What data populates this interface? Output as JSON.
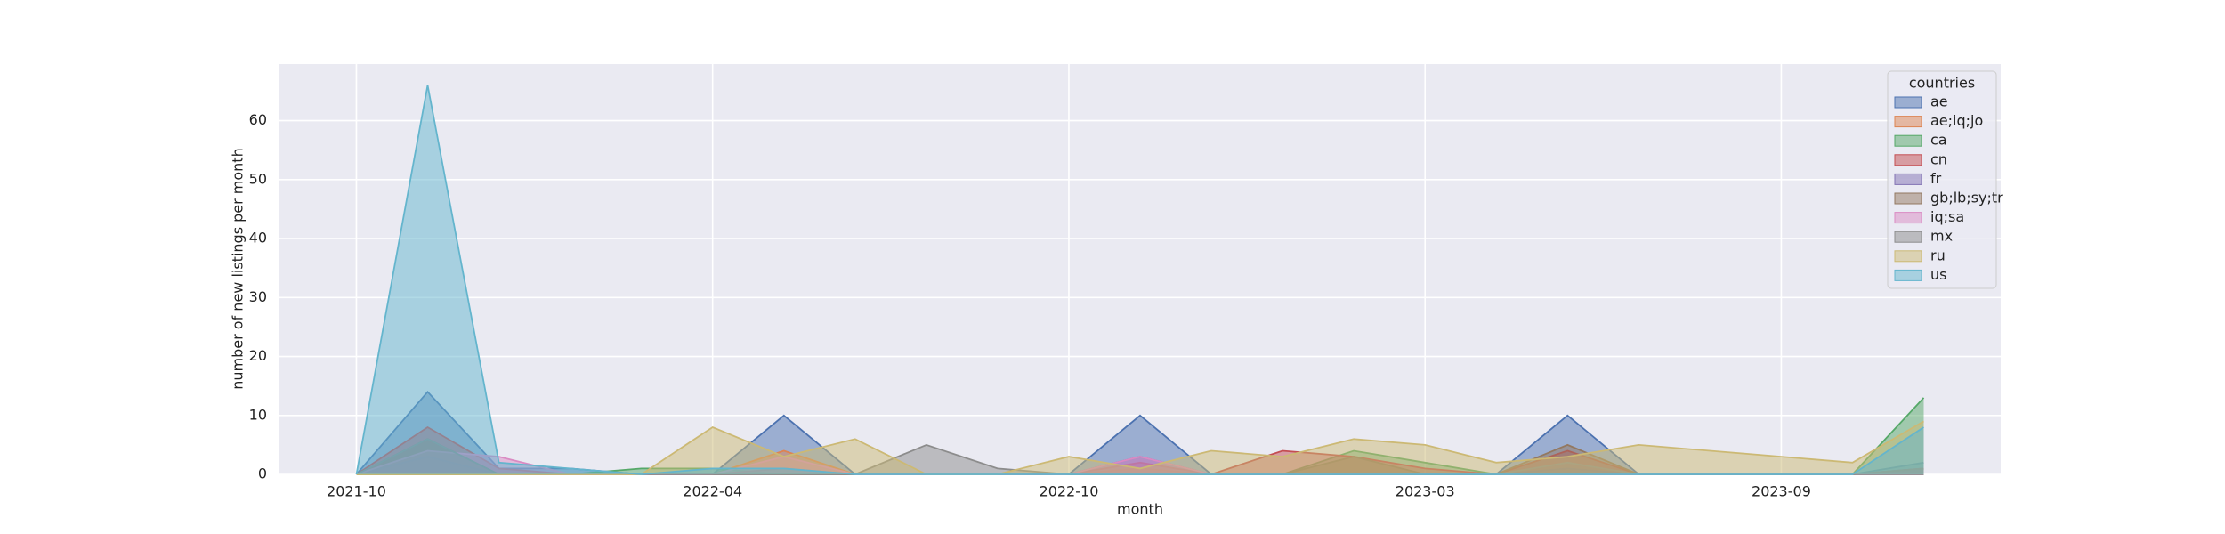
{
  "chart_data": {
    "type": "area",
    "xlabel": "month",
    "ylabel": "number of new listings per month",
    "categories": [
      "2021-10",
      null,
      null,
      null,
      null,
      "2022-04",
      null,
      null,
      null,
      null,
      "2022-10",
      null,
      null,
      null,
      null,
      "2023-03",
      null,
      null,
      null,
      null,
      "2023-09",
      null,
      null
    ],
    "ylim": [
      0,
      69.6
    ],
    "yticks": [
      0,
      10,
      20,
      30,
      40,
      50,
      60
    ],
    "grid": true,
    "legend_title": "countries",
    "legend_position": "upper right",
    "series": [
      {
        "name": "ae",
        "color": "#4c72b0",
        "values": [
          0,
          14,
          1,
          1,
          0,
          0,
          10,
          0,
          0,
          0,
          0,
          10,
          0,
          0,
          0,
          0,
          0,
          10,
          0,
          0,
          0,
          0,
          2
        ]
      },
      {
        "name": "ae;iq;jo",
        "color": "#dd8452",
        "values": [
          0,
          0,
          0,
          0,
          0,
          0,
          4,
          0,
          0,
          0,
          0,
          1,
          0,
          0,
          0,
          0,
          0,
          0,
          0,
          0,
          0,
          0,
          1
        ]
      },
      {
        "name": "ca",
        "color": "#55a868",
        "values": [
          0,
          0,
          0,
          0,
          1,
          1,
          0,
          0,
          0,
          0,
          0,
          0,
          0,
          0,
          4,
          2,
          0,
          0,
          0,
          0,
          0,
          0,
          13
        ]
      },
      {
        "name": "cn",
        "color": "#c44e52",
        "values": [
          0,
          8,
          1,
          0,
          0,
          0,
          1,
          0,
          0,
          0,
          0,
          2,
          0,
          4,
          3,
          1,
          0,
          4,
          0,
          0,
          0,
          0,
          1
        ]
      },
      {
        "name": "fr",
        "color": "#8172b3",
        "values": [
          0,
          3,
          0,
          0,
          0,
          0,
          0,
          0,
          0,
          0,
          0,
          3,
          0,
          0,
          0,
          0,
          0,
          1,
          0,
          0,
          0,
          0,
          1
        ]
      },
      {
        "name": "gb;lb;sy;tr",
        "color": "#937860",
        "values": [
          0,
          6,
          0,
          0,
          0,
          0,
          0,
          0,
          0,
          0,
          0,
          0,
          0,
          0,
          3,
          0,
          0,
          5,
          0,
          0,
          0,
          0,
          1
        ]
      },
      {
        "name": "iq;sa",
        "color": "#da8bc3",
        "values": [
          0,
          4,
          3,
          0,
          0,
          0,
          3,
          0,
          0,
          0,
          0,
          3,
          0,
          0,
          0,
          0,
          0,
          0,
          0,
          0,
          0,
          0,
          0
        ]
      },
      {
        "name": "mx",
        "color": "#8c8c8c",
        "values": [
          0,
          6,
          0,
          0,
          0,
          0,
          0,
          0,
          5,
          1,
          0,
          0,
          0,
          0,
          0,
          0,
          0,
          2,
          0,
          0,
          0,
          0,
          0
        ]
      },
      {
        "name": "ru",
        "color": "#ccb974",
        "values": [
          0,
          0,
          0,
          0,
          0,
          8,
          3,
          6,
          0,
          0,
          3,
          1,
          4,
          3,
          6,
          5,
          2,
          3,
          5,
          4,
          3,
          2,
          9
        ]
      },
      {
        "name": "us",
        "color": "#64b5cd",
        "values": [
          0,
          66,
          2,
          1,
          0,
          1,
          1,
          0,
          0,
          0,
          0,
          0,
          0,
          0,
          0,
          0,
          0,
          0,
          0,
          0,
          0,
          0,
          8
        ]
      }
    ]
  }
}
